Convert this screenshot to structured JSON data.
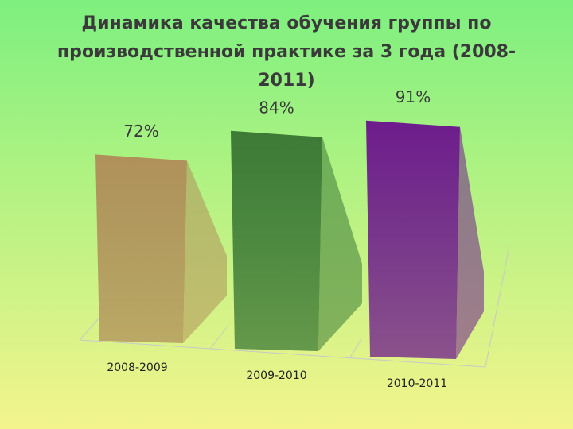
{
  "chart_data": {
    "type": "bar",
    "title": "Динамика качества обучения группы по производственной практике за 3 года (2008-2011)",
    "categories": [
      "2008-2009",
      "2009-2010",
      "2010-2011"
    ],
    "values": [
      72,
      84,
      91
    ],
    "value_labels": [
      "72%",
      "84%",
      "91%"
    ],
    "colors": [
      "#b0905a",
      "#3d7a36",
      "#6e1c8c"
    ]
  }
}
